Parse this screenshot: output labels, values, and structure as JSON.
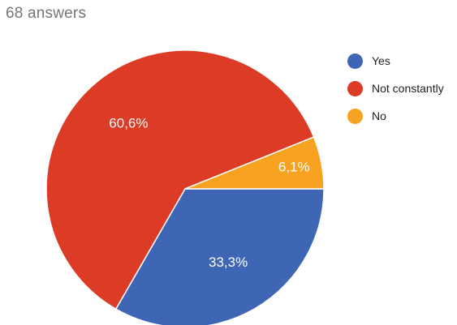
{
  "header": {
    "answers_label": "68 answers"
  },
  "chart_data": {
    "type": "pie",
    "title": "",
    "start_angle_deg": 0,
    "direction": "clockwise",
    "legend_position": "right",
    "slices": [
      {
        "label": "Yes",
        "value": 33.3,
        "display": "33,3%",
        "color": "#3e66b4"
      },
      {
        "label": "Not constantly",
        "value": 60.6,
        "display": "60,6%",
        "color": "#dc3b25"
      },
      {
        "label": "No",
        "value": 6.1,
        "display": "6,1%",
        "color": "#f8a221"
      }
    ]
  }
}
